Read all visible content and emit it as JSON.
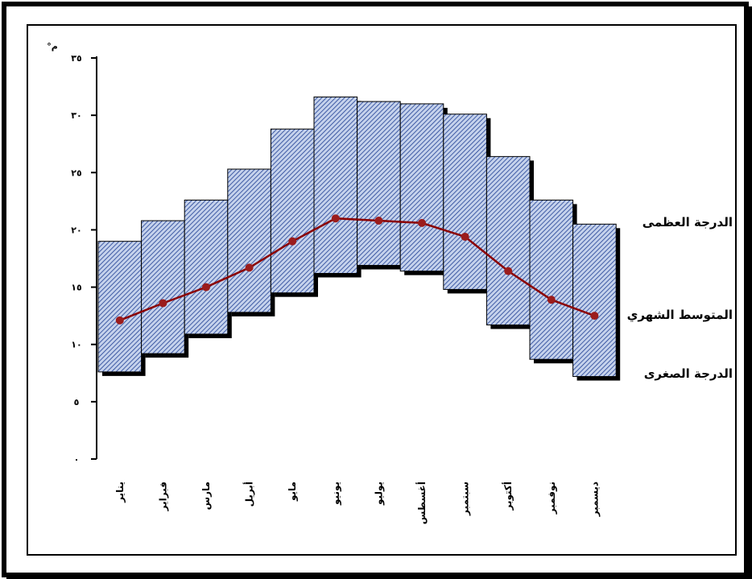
{
  "chart_data": {
    "type": "bar",
    "subtype": "floating-range-with-line",
    "unit": "°م",
    "ylim": [
      0,
      35
    ],
    "y_ticks": [
      "٠",
      "٥",
      "١٠",
      "١٥",
      "٢٠",
      "٢٥",
      "٣٠",
      "٣٥"
    ],
    "y_tick_values": [
      0,
      5,
      10,
      15,
      20,
      25,
      30,
      35
    ],
    "categories": [
      "يناير",
      "فبراير",
      "مارس",
      "أبريل",
      "مايو",
      "يونيو",
      "يوليو",
      "أغسطس",
      "سبتمبر",
      "أكتوبر",
      "نوفمبر",
      "ديسمبر"
    ],
    "series": [
      {
        "name": "الدرجة العظمى",
        "values": [
          19,
          20.8,
          22.6,
          25.3,
          28.8,
          31.6,
          31.2,
          31.0,
          30.1,
          26.4,
          22.6,
          20.5
        ]
      },
      {
        "name": "المتوسط الشهري",
        "values": [
          12.1,
          13.6,
          15.0,
          16.7,
          19.0,
          21.0,
          20.8,
          20.6,
          19.4,
          16.4,
          13.9,
          12.5
        ]
      },
      {
        "name": "الدرجة الصغرى",
        "values": [
          7.6,
          9.2,
          10.9,
          12.8,
          14.5,
          16.2,
          16.9,
          16.4,
          14.8,
          11.7,
          8.7,
          7.2
        ]
      }
    ],
    "legend": {
      "position": "right",
      "max_label": "الدرجة العظمى",
      "mean_label": "المتوسط الشهري",
      "min_label": "الدرجة الصغرى"
    },
    "colors": {
      "bar_fill": "#c5d2ec",
      "bar_hatch": "#1f3f94",
      "bar_shadow": "#000000",
      "line": "#8b0000",
      "marker": "#9b1c1c"
    }
  }
}
